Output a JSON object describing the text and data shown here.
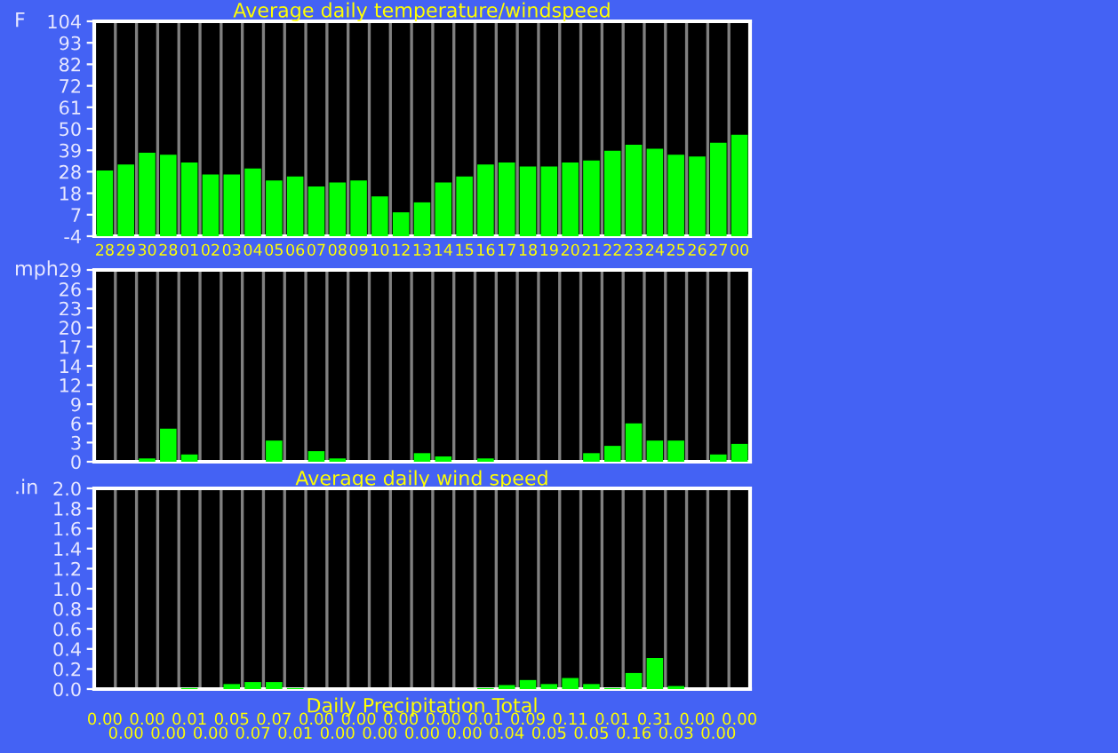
{
  "chart_data": [
    {
      "type": "bar",
      "title": "Average daily temperature/windspeed",
      "ylabel": "F",
      "grid": "x",
      "color": "#00ff00",
      "categories": [
        "28",
        "29",
        "30",
        "28",
        "01",
        "02",
        "03",
        "04",
        "05",
        "06",
        "07",
        "08",
        "09",
        "10",
        "12",
        "13",
        "14",
        "15",
        "16",
        "17",
        "18",
        "19",
        "20",
        "21",
        "22",
        "23",
        "24",
        "25",
        "26",
        "27",
        "00"
      ],
      "base": [
        -4,
        -4,
        -4,
        -4,
        -4,
        -4,
        -4,
        -4,
        -4,
        -4,
        -4,
        -4,
        -4,
        -4,
        -4,
        -4,
        -4,
        -4,
        -4,
        -4,
        -4,
        -4,
        -4,
        -4,
        -4,
        -4,
        -4,
        -4,
        -4,
        -4,
        -4
      ],
      "values": [
        33,
        36,
        42,
        41,
        37,
        31,
        31,
        34,
        28,
        30,
        25,
        27,
        28,
        20,
        12,
        17,
        27,
        30,
        36,
        37,
        35,
        35,
        37,
        38,
        43,
        46,
        44,
        41,
        40,
        47,
        51
      ],
      "ylim": [
        -4,
        104
      ],
      "yticks": [
        -4,
        {
          "value": 6.8,
          "label": "7"
        },
        {
          "value": 17.6,
          "label": "18"
        },
        {
          "value": 28.4,
          "label": "28"
        },
        {
          "value": 39.2,
          "label": "39"
        },
        50,
        {
          "value": 60.8,
          "label": "61"
        },
        {
          "value": 71.6,
          "label": "72"
        },
        {
          "value": 82.4,
          "label": "82"
        },
        {
          "value": 93.2,
          "label": "93"
        },
        104
      ]
    },
    {
      "type": "bar",
      "xlabel": "Average daily wind speed",
      "ylabel": "mph",
      "grid": "x",
      "color": "#00ff00",
      "tick_labels": "y",
      "categories": [
        "28",
        "29",
        "30",
        "28",
        "01",
        "02",
        "03",
        "04",
        "05",
        "06",
        "07",
        "08",
        "09",
        "10",
        "12",
        "13",
        "14",
        "15",
        "16",
        "17",
        "18",
        "19",
        "20",
        "21",
        "22",
        "23",
        "24",
        "25",
        "26",
        "27",
        "00"
      ],
      "values": [
        0,
        0,
        0.5,
        5.0,
        1.1,
        0,
        0,
        0,
        3.2,
        0,
        1.6,
        0.5,
        0,
        0,
        0,
        1.3,
        0.8,
        0,
        0.5,
        0,
        0,
        0,
        0,
        1.3,
        2.4,
        5.8,
        3.2,
        3.2,
        0,
        1.1,
        2.7
      ],
      "ylim": [
        0,
        29
      ],
      "yticks": [
        0,
        {
          "value": 2.9,
          "label": "3"
        },
        {
          "value": 5.8,
          "label": "6"
        },
        {
          "value": 8.7,
          "label": "9"
        },
        {
          "value": 11.6,
          "label": "12"
        },
        {
          "value": 14.5,
          "label": "14"
        },
        {
          "value": 17.4,
          "label": "17"
        },
        {
          "value": 20.3,
          "label": "20"
        },
        {
          "value": 23.2,
          "label": "23"
        },
        {
          "value": 26.1,
          "label": "26"
        },
        29
      ]
    },
    {
      "type": "bar",
      "xlabel": "Daily Precipitation Total",
      "ylabel": ".in",
      "grid": "x",
      "color": "#00ff00",
      "tick_labels": "y",
      "categories": [
        "28",
        "29",
        "30",
        "28",
        "01",
        "02",
        "03",
        "04",
        "05",
        "06",
        "07",
        "08",
        "09",
        "10",
        "12",
        "13",
        "14",
        "15",
        "16",
        "17",
        "18",
        "19",
        "20",
        "21",
        "22",
        "23",
        "24",
        "25",
        "26",
        "27",
        "00"
      ],
      "values": [
        0,
        0,
        0,
        0,
        0.01,
        0,
        0.05,
        0.07,
        0.07,
        0.01,
        0,
        0,
        0,
        0,
        0,
        0,
        0,
        0,
        0.01,
        0.04,
        0.09,
        0.05,
        0.11,
        0.05,
        0.01,
        0.16,
        0.31,
        0.03,
        0,
        0,
        0
      ],
      "value_labels": [
        "0.00",
        "0.00",
        "0.00",
        "0.00",
        "0.01",
        "0.00",
        "0.05",
        "0.07",
        "0.07",
        "0.01",
        "0.00",
        "0.00",
        "0.00",
        "0.00",
        "0.00",
        "0.00",
        "0.00",
        "0.00",
        "0.01",
        "0.04",
        "0.09",
        "0.05",
        "0.11",
        "0.05",
        "0.01",
        "0.16",
        "0.31",
        "0.03",
        "0.00",
        "0.00",
        "0.00"
      ],
      "ylim": [
        0,
        2.0
      ],
      "yticks": [
        {
          "value": 0,
          "label": "0.0"
        },
        {
          "value": 0.2,
          "label": "0.2"
        },
        {
          "value": 0.4,
          "label": "0.4"
        },
        {
          "value": 0.6,
          "label": "0.6"
        },
        {
          "value": 0.8,
          "label": "0.8"
        },
        {
          "value": 1.0,
          "label": "1.0"
        },
        {
          "value": 1.2,
          "label": "1.2"
        },
        {
          "value": 1.4,
          "label": "1.4"
        },
        {
          "value": 1.6,
          "label": "1.6"
        },
        {
          "value": 1.8,
          "label": "1.8"
        },
        {
          "value": 2.0,
          "label": "2.0"
        }
      ]
    }
  ]
}
